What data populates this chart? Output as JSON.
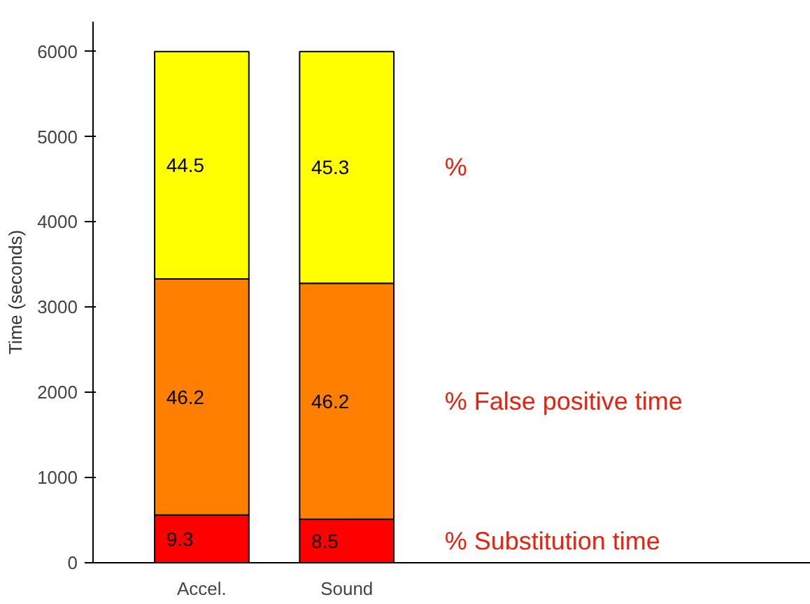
{
  "chart_data": {
    "type": "bar",
    "stacked": true,
    "ylabel": "Time (seconds)",
    "categories": [
      "Accel.",
      "Sound"
    ],
    "ylim": [
      0,
      6350
    ],
    "yticks": [
      0,
      1000,
      2000,
      3000,
      4000,
      5000,
      6000
    ],
    "grid": false,
    "series": [
      {
        "name": "% Substitution time",
        "color": "#ff0000",
        "values": [
          560,
          510
        ]
      },
      {
        "name": "% False positive time",
        "color": "#ff8000",
        "values": [
          2770,
          2770
        ]
      },
      {
        "name": "%",
        "color": "#ffff00",
        "values": [
          2670,
          2720
        ]
      }
    ],
    "annotations": [
      "9.3",
      "8.5",
      "46.2",
      "46.2",
      "44.5",
      "45.3"
    ]
  }
}
